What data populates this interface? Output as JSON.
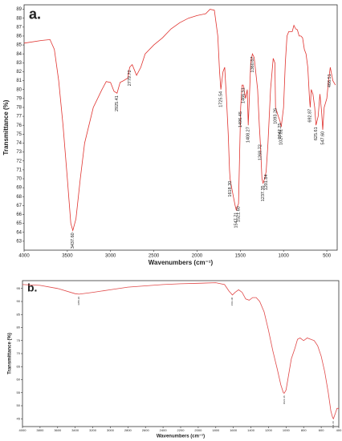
{
  "chart_data": [
    {
      "type": "line",
      "panel_label": "a.",
      "xlabel": "Wavenumbers (cm⁻¹)",
      "ylabel": "Transmittance (%)",
      "color": "#e0332f",
      "xlim": [
        4000,
        380
      ],
      "ylim": [
        62,
        89.5
      ],
      "xticks": [
        4000,
        3500,
        3000,
        2500,
        2000,
        1500,
        1000,
        500
      ],
      "yticks": [
        63,
        64,
        65,
        66,
        67,
        68,
        69,
        70,
        71,
        72,
        73,
        74,
        75,
        76,
        77,
        78,
        79,
        80,
        81,
        82,
        83,
        84,
        85,
        86,
        87,
        88,
        89
      ],
      "x": [
        4000,
        3800,
        3700,
        3650,
        3600,
        3550,
        3500,
        3460,
        3437,
        3400,
        3350,
        3300,
        3200,
        3100,
        3050,
        3000,
        2960,
        2925,
        2890,
        2850,
        2800,
        2779,
        2750,
        2700,
        2650,
        2600,
        2500,
        2400,
        2300,
        2200,
        2100,
        2000,
        1900,
        1850,
        1800,
        1760,
        1740,
        1725,
        1700,
        1680,
        1660,
        1640,
        1625,
        1618,
        1600,
        1580,
        1560,
        1547,
        1530,
        1521,
        1510,
        1496,
        1480,
        1466,
        1440,
        1420,
        1408,
        1395,
        1380,
        1360,
        1340,
        1300,
        1280,
        1268,
        1250,
        1237,
        1220,
        1201,
        1180,
        1150,
        1120,
        1100,
        1093,
        1060,
        1042,
        1027,
        1000,
        980,
        960,
        940,
        900,
        880,
        860,
        840,
        820,
        800,
        780,
        760,
        740,
        720,
        700,
        692,
        680,
        660,
        640,
        625,
        600,
        580,
        560,
        547,
        530,
        500,
        480,
        460,
        430,
        400
      ],
      "values": [
        85.2,
        85.5,
        85.6,
        84.5,
        81,
        76,
        70,
        65,
        64.2,
        65.5,
        70,
        74,
        78,
        80,
        80.9,
        80.8,
        79.8,
        79.6,
        80.8,
        81,
        81.3,
        82.5,
        82.8,
        81.6,
        82.5,
        84,
        85,
        85.8,
        86.8,
        87.5,
        88,
        88.3,
        88.5,
        89,
        88.9,
        86,
        82,
        80,
        82,
        82.5,
        79,
        75,
        71,
        70,
        69,
        68,
        67,
        66.5,
        67,
        67.2,
        72,
        78,
        80.5,
        80.5,
        79,
        80,
        76,
        79,
        83,
        84,
        83.6,
        80,
        76,
        74,
        70,
        69.5,
        70,
        70.8,
        74,
        80,
        83.5,
        83,
        78,
        77,
        76.5,
        75.8,
        78,
        83,
        86,
        86.5,
        86.5,
        87.2,
        86.8,
        86.7,
        86,
        86,
        85.8,
        84.5,
        84,
        82.5,
        79,
        78,
        80,
        79.5,
        78,
        76,
        77,
        79.5,
        77.5,
        75.5,
        78,
        79,
        81,
        82.5,
        81,
        80.5
      ],
      "annotations": [
        {
          "x": 3437.6,
          "label": "3437.60"
        },
        {
          "x": 2925.41,
          "label": "2925.41"
        },
        {
          "x": 2779.72,
          "label": "2779.72"
        },
        {
          "x": 1725.54,
          "label": "1725.54"
        },
        {
          "x": 1618.2,
          "label": "1618.20"
        },
        {
          "x": 1547.71,
          "label": "1547.71"
        },
        {
          "x": 1521.6,
          "label": "1521.60"
        },
        {
          "x": 1496.45,
          "label": "1496.45"
        },
        {
          "x": 1466.51,
          "label": "1466.51"
        },
        {
          "x": 1408.27,
          "label": "1408.27"
        },
        {
          "x": 1360.67,
          "label": "1360.67"
        },
        {
          "x": 1268.72,
          "label": "1268.72"
        },
        {
          "x": 1237.35,
          "label": "1237.35"
        },
        {
          "x": 1201.84,
          "label": "1201.84"
        },
        {
          "x": 1093.26,
          "label": "1093.26"
        },
        {
          "x": 1042.25,
          "label": "1042.25"
        },
        {
          "x": 1027.81,
          "label": "1027.81"
        },
        {
          "x": 692.87,
          "label": "692.87"
        },
        {
          "x": 625.61,
          "label": "625.61"
        },
        {
          "x": 547.6,
          "label": "547.60"
        },
        {
          "x": 466.51,
          "label": "466.51"
        }
      ]
    },
    {
      "type": "line",
      "panel_label": "b.",
      "xlabel": "Wavenumbers (cm⁻¹)",
      "ylabel": "Transmittance (%)",
      "color": "#e04848",
      "xlim": [
        4000,
        400
      ],
      "ylim": [
        42,
        98
      ],
      "xticks": [
        4000,
        3800,
        3600,
        3400,
        3200,
        3000,
        2800,
        2600,
        2400,
        2200,
        2000,
        1800,
        1600,
        1400,
        1200,
        1000,
        800,
        600,
        400
      ],
      "yticks": [
        45,
        50,
        55,
        60,
        65,
        70,
        75,
        80,
        85,
        90,
        95
      ],
      "x": [
        4000,
        3800,
        3600,
        3400,
        3356,
        3200,
        3000,
        2800,
        2600,
        2400,
        2200,
        2000,
        1800,
        1700,
        1650,
        1611,
        1580,
        1540,
        1500,
        1460,
        1420,
        1380,
        1340,
        1300,
        1250,
        1200,
        1150,
        1100,
        1060,
        1030,
        1021,
        1000,
        970,
        940,
        900,
        870,
        840,
        800,
        760,
        720,
        680,
        640,
        600,
        560,
        520,
        490,
        470,
        461,
        440,
        420,
        400
      ],
      "values": [
        96.5,
        96.2,
        95,
        93,
        92.8,
        93.5,
        94.5,
        95.5,
        96,
        96.5,
        96.8,
        97,
        97.2,
        96.5,
        94,
        92.5,
        93.5,
        94.5,
        93.5,
        91,
        90.5,
        91.5,
        91.5,
        90,
        86,
        79,
        71,
        64,
        58,
        55,
        54.8,
        56,
        62,
        68,
        72,
        75.5,
        76,
        75,
        76,
        75.5,
        75,
        73,
        69,
        63,
        55,
        48,
        45.5,
        45,
        47,
        49,
        49
      ],
      "annotations": [
        {
          "x": 3356.29,
          "label": "3356.29"
        },
        {
          "x": 1611.3,
          "label": "1611.30"
        },
        {
          "x": 1021.36,
          "label": "1021.36"
        },
        {
          "x": 461.16,
          "label": "461.16"
        }
      ]
    }
  ]
}
